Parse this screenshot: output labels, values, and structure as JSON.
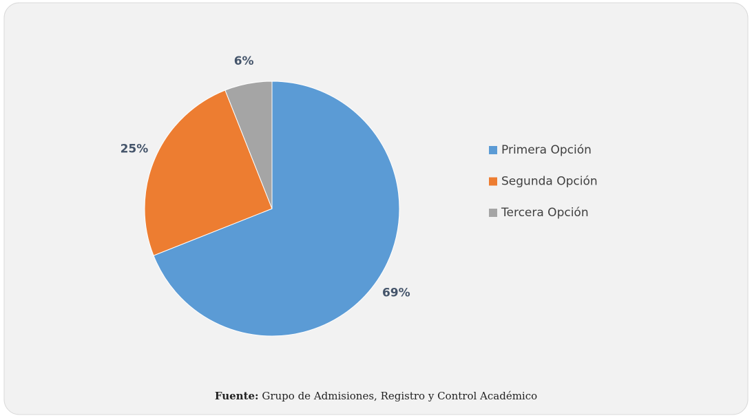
{
  "chart_data": {
    "type": "pie",
    "categories": [
      "Primera Opción",
      "Segunda Opción",
      "Tercera Opción"
    ],
    "values": [
      69,
      25,
      6
    ],
    "value_labels": [
      "69%",
      "25%",
      "6%"
    ],
    "colors": [
      "#5b9bd5",
      "#ed7d31",
      "#a5a5a5"
    ],
    "legend": "right",
    "source": {
      "label": "Fuente:",
      "text": "Grupo de Admisiones, Registro y Control Académico"
    }
  }
}
